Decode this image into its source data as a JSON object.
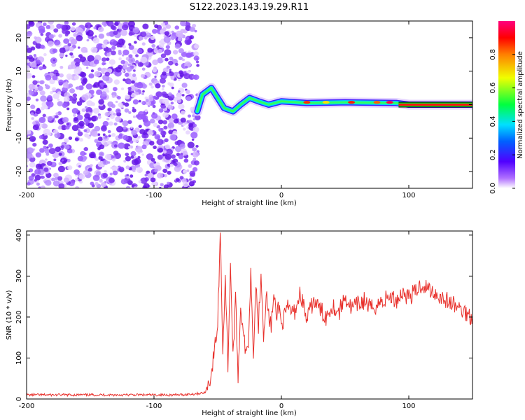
{
  "title": "S122.2023.143.19.29.R11",
  "chart_data": [
    {
      "type": "heatmap",
      "xlabel": "Height of straight line (km)",
      "ylabel": "Frequency (Hz)",
      "xlim": [
        -200,
        150
      ],
      "ylim": [
        -25,
        25
      ],
      "x_ticks": [
        -200,
        -100,
        0,
        100
      ],
      "y_ticks": [
        -20,
        -10,
        0,
        10,
        20
      ],
      "colorbar": {
        "label": "Normalized spectral amplitude",
        "range": [
          0,
          1
        ],
        "ticks": [
          "0.0",
          "0.2",
          "0.4",
          "0.6",
          "0.8"
        ],
        "colormap": [
          "#ffffff",
          "#b070ff",
          "#5000ff",
          "#0060ff",
          "#00e0ff",
          "#00ff40",
          "#f0ff00",
          "#ff8000",
          "#ff0000",
          "#ff0080"
        ]
      },
      "noise_region_x": [
        -200,
        -65
      ],
      "ridge": [
        {
          "x": -66,
          "y": -2
        },
        {
          "x": -62,
          "y": 3
        },
        {
          "x": -55,
          "y": 5
        },
        {
          "x": -50,
          "y": 2
        },
        {
          "x": -45,
          "y": -1
        },
        {
          "x": -38,
          "y": -2
        },
        {
          "x": -32,
          "y": 0
        },
        {
          "x": -25,
          "y": 2
        },
        {
          "x": -18,
          "y": 1
        },
        {
          "x": -10,
          "y": 0
        },
        {
          "x": 0,
          "y": 1
        },
        {
          "x": 20,
          "y": 0.5
        },
        {
          "x": 50,
          "y": 0.7
        },
        {
          "x": 90,
          "y": 0.5
        },
        {
          "x": 100,
          "y": 0
        },
        {
          "x": 150,
          "y": 0
        }
      ]
    },
    {
      "type": "line",
      "xlabel": "Height of straight line (km)",
      "ylabel": "SNR (10 * v/v)",
      "xlim": [
        -200,
        150
      ],
      "ylim": [
        0,
        410
      ],
      "x_ticks": [
        -200,
        -100,
        0,
        100
      ],
      "y_ticks": [
        0,
        100,
        200,
        300,
        400
      ],
      "color": "#e8312c",
      "series": [
        {
          "x": [
            -200,
            -180,
            -160,
            -140,
            -120,
            -100,
            -80,
            -70,
            -60,
            -55,
            -50,
            -48,
            -46,
            -44,
            -42,
            -40,
            -38,
            -36,
            -34,
            -32,
            -30,
            -28,
            -26,
            -24,
            -22,
            -20,
            -18,
            -16,
            -14,
            -12,
            -10,
            -8,
            -6,
            -4,
            -2,
            0,
            5,
            10,
            15,
            20,
            25,
            30,
            35,
            40,
            45,
            50,
            55,
            60,
            65,
            70,
            75,
            80,
            85,
            90,
            95,
            100,
            105,
            110,
            115,
            120,
            125,
            130,
            135,
            140,
            145,
            150
          ],
          "values": [
            10,
            10,
            10,
            10,
            10,
            10,
            10,
            12,
            15,
            60,
            180,
            410,
            120,
            300,
            80,
            335,
            100,
            240,
            60,
            220,
            180,
            100,
            140,
            310,
            120,
            280,
            180,
            320,
            150,
            260,
            200,
            180,
            250,
            200,
            230,
            180,
            220,
            210,
            260,
            190,
            240,
            220,
            200,
            230,
            210,
            250,
            220,
            230,
            240,
            220,
            230,
            240,
            250,
            240,
            260,
            250,
            260,
            280,
            270,
            260,
            250,
            240,
            230,
            220,
            210,
            200
          ]
        }
      ]
    }
  ]
}
